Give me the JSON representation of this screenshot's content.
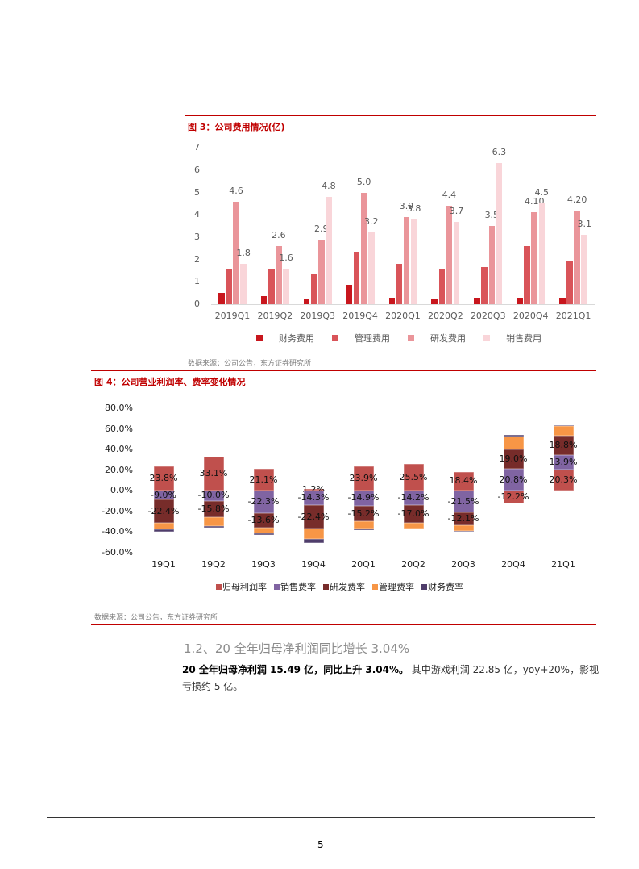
{
  "figure3": {
    "title": "图 3：公司费用情况(亿)",
    "source": "数据来源：公司公告，东方证券研究所",
    "chart_data": {
      "type": "bar",
      "title": "公司费用情况(亿)",
      "xlabel": "",
      "ylabel": "",
      "ylim": [
        0,
        7
      ],
      "yticks": [
        "0",
        "1",
        "2",
        "3",
        "4",
        "5",
        "6",
        "7"
      ],
      "grid": false,
      "legend_position": "bottom",
      "categories": [
        "2019Q1",
        "2019Q2",
        "2019Q3",
        "2019Q4",
        "2020Q1",
        "2020Q2",
        "2020Q3",
        "2020Q4",
        "2021Q1"
      ],
      "series": [
        {
          "name": "财务费用",
          "color": "#c8161d",
          "values": [
            0.5,
            0.35,
            0.25,
            0.85,
            0.3,
            0.2,
            0.3,
            0.3,
            0.3
          ],
          "labels": [
            "",
            "",
            "",
            "",
            "",
            "",
            "",
            "",
            ""
          ]
        },
        {
          "name": "管理费用",
          "color": "#d95459",
          "values": [
            1.55,
            1.6,
            1.35,
            2.35,
            1.8,
            1.55,
            1.65,
            2.6,
            1.9
          ],
          "labels": [
            "",
            "",
            "",
            "",
            "",
            "",
            "",
            "",
            ""
          ]
        },
        {
          "name": "研发费用",
          "color": "#ea959a",
          "values": [
            4.6,
            2.6,
            2.9,
            5.0,
            3.9,
            4.4,
            3.5,
            4.1,
            4.2
          ],
          "labels": [
            "4.6",
            "2.6",
            "2.9",
            "5.0",
            "3.9",
            "4.4",
            "3.5",
            "4.10",
            "4.20"
          ]
        },
        {
          "name": "销售费用",
          "color": "#f9d5d9",
          "values": [
            1.8,
            1.6,
            4.8,
            3.2,
            3.8,
            3.7,
            6.3,
            4.5,
            3.1
          ],
          "labels": [
            "1.8",
            "1.6",
            "4.8",
            "3.2",
            "3.8",
            "3.7",
            "6.3",
            "4.5",
            "3.1"
          ]
        }
      ]
    }
  },
  "figure4": {
    "title": "图 4：公司营业利润率、费率变化情况",
    "source": "数据来源：公司公告，东方证券研究所",
    "chart_data": {
      "type": "bar",
      "stacked": true,
      "title": "公司营业利润率、费率变化情况",
      "xlabel": "",
      "ylabel": "",
      "ylim": [
        -60,
        80
      ],
      "yticks": [
        "80.0%",
        "60.0%",
        "40.0%",
        "20.0%",
        "0.0%",
        "-20.0%",
        "-40.0%",
        "-60.0%"
      ],
      "grid": false,
      "legend_position": "bottom",
      "categories": [
        "19Q1",
        "19Q2",
        "19Q3",
        "19Q4",
        "20Q1",
        "20Q2",
        "20Q3",
        "20Q4",
        "21Q1"
      ],
      "series": [
        {
          "name": "归母利润率",
          "color": "#c0504d",
          "values": [
            23.8,
            33.1,
            21.1,
            1.2,
            23.9,
            25.5,
            18.4,
            -12.2,
            20.3
          ],
          "labels": [
            "23.8%",
            "33.1%",
            "21.1%",
            "1.2%",
            "23.9%",
            "25.5%",
            "18.4%",
            "-12.2%",
            "20.3%"
          ]
        },
        {
          "name": "销售费率",
          "color": "#8064a2",
          "values": [
            -9.0,
            -10.0,
            -22.3,
            -14.3,
            -14.9,
            -14.2,
            -21.5,
            20.8,
            13.9
          ],
          "labels": [
            "-9.0%",
            "-10.0%",
            "-22.3%",
            "-14.3%",
            "-14.9%",
            "-14.2%",
            "-21.5%",
            "20.8%",
            "13.9%"
          ]
        },
        {
          "name": "研发费率",
          "color": "#772c2a",
          "values": [
            -22.4,
            -15.8,
            -13.6,
            -22.4,
            -15.2,
            -17.0,
            -12.1,
            19.0,
            18.8
          ],
          "labels": [
            "-22.4%",
            "-15.8%",
            "-13.6%",
            "-22.4%",
            "-15.2%",
            "-17.0%",
            "-12.1%",
            "19.0%",
            "18.8%"
          ]
        },
        {
          "name": "管理费率",
          "color": "#f79646",
          "values": [
            -6.5,
            -8.5,
            -6.0,
            -10.0,
            -7.0,
            -5.5,
            -5.5,
            13.0,
            9.5
          ],
          "labels": [
            "",
            "",
            "",
            "",
            "",
            "",
            "",
            "",
            ""
          ]
        },
        {
          "name": "财务费率",
          "color": "#4f3d6b",
          "values": [
            -2.0,
            -2.0,
            -1.0,
            -4.0,
            -1.0,
            -1.0,
            -1.0,
            1.0,
            1.0
          ],
          "labels": [
            "",
            "",
            "",
            "",
            "",
            "",
            "",
            "",
            ""
          ]
        }
      ]
    }
  },
  "section": {
    "heading": "1.2、20 全年归母净利润同比增长 3.04%",
    "para_bold": "20 全年归母净利润 15.49 亿，同比上升 3.04%。",
    "para_rest": " 其中游戏利润 22.85 亿，yoy+20%，影视亏损约 5 亿。"
  },
  "footer": {
    "page_number": "5"
  }
}
